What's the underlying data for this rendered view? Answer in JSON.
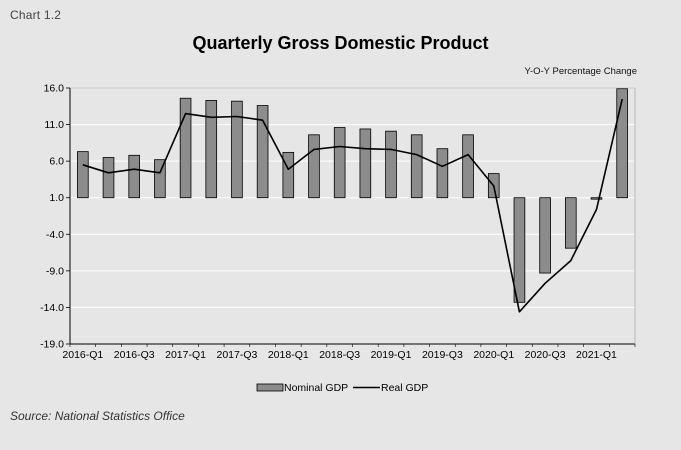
{
  "chart_label": "Chart 1.2",
  "source_note": "Source: National Statistics Office",
  "colors": {
    "background": "#e6e6e6",
    "plot_area": "#e6e6e6",
    "bar_fill": "#8c8c8c",
    "bar_stroke": "#000000",
    "line": "#000000",
    "grid": "#ffffff"
  },
  "chart_data": {
    "type": "bar",
    "title": "Quarterly Gross Domestic Product",
    "unit_label": "Y-O-Y Percentage Change",
    "xlabel": "",
    "ylabel": "",
    "ylim": [
      -19.0,
      16.0
    ],
    "yticks": [
      "16.0",
      "11.0",
      "6.0",
      "1.0",
      "-4.0",
      "-9.0",
      "-14.0",
      "-19.0"
    ],
    "ytick_values": [
      16,
      11,
      6,
      1,
      -4,
      -9,
      -14,
      -19
    ],
    "baseline": 1.0,
    "grid": true,
    "legend_position": "bottom",
    "categories": [
      "2016-Q1",
      "2016-Q2",
      "2016-Q3",
      "2016-Q4",
      "2017-Q1",
      "2017-Q2",
      "2017-Q3",
      "2017-Q4",
      "2018-Q1",
      "2018-Q2",
      "2018-Q3",
      "2018-Q4",
      "2019-Q1",
      "2019-Q2",
      "2019-Q3",
      "2019-Q4",
      "2020-Q1",
      "2020-Q2",
      "2020-Q3",
      "2020-Q4",
      "2021-Q1",
      "2021-Q2"
    ],
    "x_tick_labels": [
      "2016-Q1",
      "2016-Q3",
      "2017-Q1",
      "2017-Q3",
      "2018-Q1",
      "2018-Q3",
      "2019-Q1",
      "2019-Q3",
      "2020-Q1",
      "2020-Q3",
      "2021-Q1"
    ],
    "series": [
      {
        "name": "Nominal GDP",
        "type": "bar",
        "values": [
          7.3,
          6.5,
          6.8,
          6.2,
          14.6,
          14.3,
          14.2,
          13.6,
          7.2,
          9.6,
          10.6,
          10.4,
          10.1,
          9.6,
          7.7,
          9.6,
          4.3,
          -13.3,
          -9.3,
          -5.9,
          0.8,
          15.9
        ]
      },
      {
        "name": "Real GDP",
        "type": "line",
        "values": [
          5.5,
          4.4,
          4.9,
          4.4,
          12.5,
          12.0,
          12.1,
          11.6,
          4.9,
          7.6,
          8.0,
          7.7,
          7.6,
          6.9,
          5.3,
          6.9,
          2.6,
          -14.6,
          -10.7,
          -7.6,
          -0.6,
          14.5
        ]
      }
    ]
  }
}
